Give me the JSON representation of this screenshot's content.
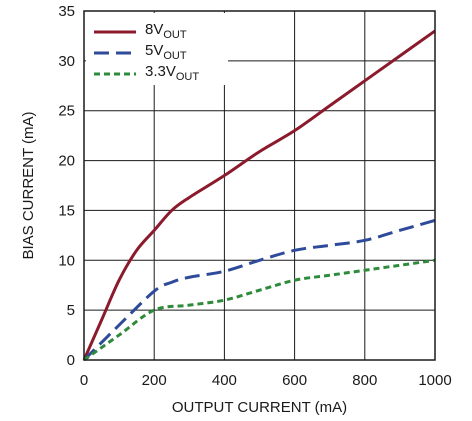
{
  "chart_data": {
    "type": "line",
    "xlabel": "OUTPUT CURRENT (mA)",
    "ylabel": "BIAS CURRENT (mA)",
    "xlim": [
      0,
      1000
    ],
    "ylim": [
      0,
      35
    ],
    "xticks": [
      0,
      200,
      400,
      600,
      800,
      1000
    ],
    "yticks": [
      0,
      5,
      10,
      15,
      20,
      25,
      30,
      35
    ],
    "grid": true,
    "legend_position": "top-left",
    "series": [
      {
        "name": "8V",
        "name_sub": "OUT",
        "color": "#8b1a2c",
        "style": "solid",
        "x": [
          0,
          50,
          100,
          150,
          200,
          250,
          300,
          400,
          500,
          600,
          700,
          800,
          900,
          1000
        ],
        "y": [
          0,
          4,
          8,
          11,
          13,
          15,
          16.3,
          18.5,
          20.9,
          23,
          25.5,
          28,
          30.5,
          33
        ]
      },
      {
        "name": "5V",
        "name_sub": "OUT",
        "color": "#2e4a9a",
        "style": "long-dash",
        "x": [
          0,
          100,
          200,
          250,
          300,
          400,
          500,
          600,
          700,
          800,
          900,
          1000
        ],
        "y": [
          0,
          3.5,
          6.9,
          7.8,
          8.3,
          8.9,
          10,
          11,
          11.5,
          12,
          13,
          14
        ]
      },
      {
        "name": "3.3V",
        "name_sub": "OUT",
        "color": "#2e8b3a",
        "style": "short-dash",
        "x": [
          0,
          100,
          200,
          300,
          400,
          500,
          600,
          700,
          800,
          900,
          1000
        ],
        "y": [
          0,
          2.5,
          5,
          5.5,
          6,
          7,
          8,
          8.5,
          9,
          9.5,
          10
        ]
      }
    ]
  }
}
